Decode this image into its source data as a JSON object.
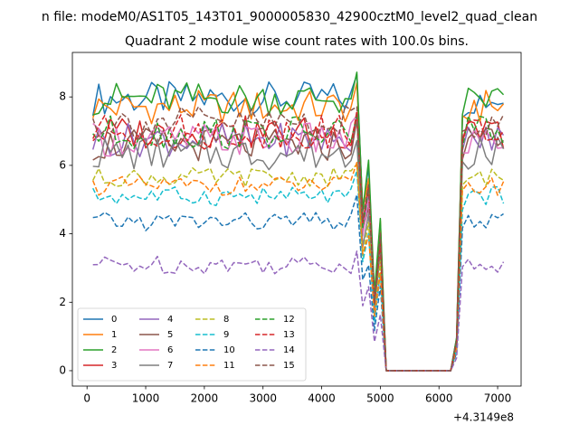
{
  "figure": {
    "suptitle": "n file: modeM0/AS1T05_143T01_9000005830_42900cztM0_level2_quad_clean",
    "offset_label": "+4.3149e8"
  },
  "chart_data": {
    "type": "line",
    "title": "Quadrant 2 module wise count rates with 100.0s bins.",
    "xlabel": "",
    "ylabel": "",
    "xlim": [
      -250,
      7400
    ],
    "ylim": [
      -0.45,
      9.3
    ],
    "x_ticks": [
      0,
      1000,
      2000,
      3000,
      4000,
      5000,
      6000,
      7000
    ],
    "y_ticks": [
      0,
      2,
      4,
      6,
      8
    ],
    "x_offset": 431490000,
    "grid": false,
    "legend_position": "lower-left",
    "legend_columns": 4,
    "series": [
      {
        "name": "0",
        "color": "#1f77b4",
        "style": "solid",
        "level": 7.95
      },
      {
        "name": "1",
        "color": "#ff7f0e",
        "style": "solid",
        "level": 7.7
      },
      {
        "name": "2",
        "color": "#2ca02c",
        "style": "solid",
        "level": 7.95
      },
      {
        "name": "3",
        "color": "#d62728",
        "style": "solid",
        "level": 6.95
      },
      {
        "name": "4",
        "color": "#9467bd",
        "style": "solid",
        "level": 6.75
      },
      {
        "name": "5",
        "color": "#8c564b",
        "style": "solid",
        "level": 6.6
      },
      {
        "name": "6",
        "color": "#e377c2",
        "style": "solid",
        "level": 6.75
      },
      {
        "name": "7",
        "color": "#7f7f7f",
        "style": "solid",
        "level": 6.35
      },
      {
        "name": "8",
        "color": "#bcbd22",
        "style": "dashed",
        "level": 5.65
      },
      {
        "name": "9",
        "color": "#17becf",
        "style": "dashed",
        "level": 5.1
      },
      {
        "name": "10",
        "color": "#1f77b4",
        "style": "dashed",
        "level": 4.35
      },
      {
        "name": "11",
        "color": "#ff7f0e",
        "style": "dashed",
        "level": 5.4
      },
      {
        "name": "12",
        "color": "#2ca02c",
        "style": "dashed",
        "level": 6.95
      },
      {
        "name": "13",
        "color": "#d62728",
        "style": "dashed",
        "level": 7.0
      },
      {
        "name": "14",
        "color": "#9467bd",
        "style": "dashed",
        "level": 3.1
      },
      {
        "name": "15",
        "color": "#8c564b",
        "style": "dashed",
        "level": 7.25
      }
    ]
  }
}
